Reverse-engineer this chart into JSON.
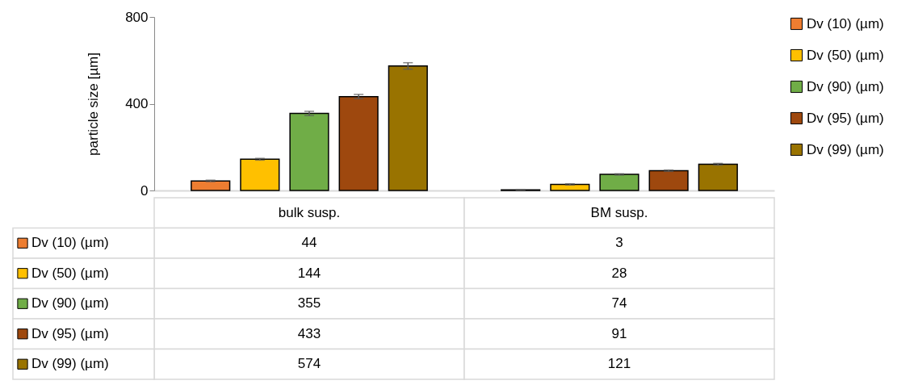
{
  "chart_data": {
    "type": "bar",
    "ylabel": "particle size [µm]",
    "categories": [
      "bulk susp.",
      "BM susp."
    ],
    "series": [
      {
        "name": "Dv (10) (µm)",
        "color": "#ed7d31",
        "values": [
          44,
          3
        ],
        "errors": [
          3,
          1
        ]
      },
      {
        "name": "Dv (50) (µm)",
        "color": "#ffc000",
        "values": [
          144,
          28
        ],
        "errors": [
          4,
          3
        ]
      },
      {
        "name": "Dv (90) (µm)",
        "color": "#70ad47",
        "values": [
          355,
          74
        ],
        "errors": [
          10,
          3
        ]
      },
      {
        "name": "Dv (95) (µm)",
        "color": "#9e480e",
        "values": [
          433,
          91
        ],
        "errors": [
          10,
          3
        ]
      },
      {
        "name": "Dv (99) (µm)",
        "color": "#997300",
        "values": [
          574,
          121
        ],
        "errors": [
          15,
          4
        ]
      }
    ],
    "ylim": [
      0,
      800
    ],
    "yticks": [
      0,
      400,
      800
    ],
    "grid": false,
    "legend": "right",
    "data_labels": true
  }
}
